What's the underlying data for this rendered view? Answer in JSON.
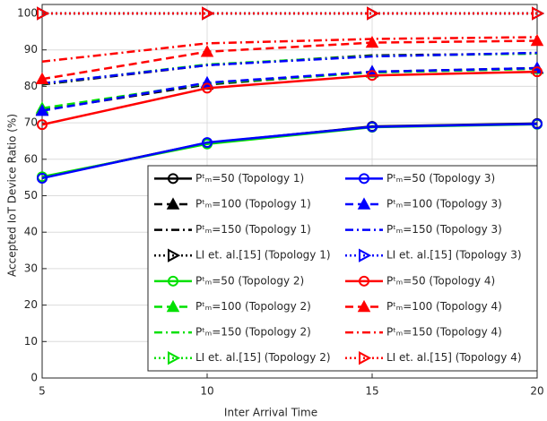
{
  "chart_data": {
    "type": "line",
    "xlabel": "Inter Arrival Time",
    "ylabel": "Accepted IoT Device Ratio (%)",
    "x": [
      5,
      10,
      15,
      20
    ],
    "xlim": [
      5,
      20
    ],
    "xticks": [
      5,
      10,
      15,
      20
    ],
    "ylim": [
      0,
      100
    ],
    "yticks": [
      0,
      10,
      20,
      30,
      40,
      50,
      60,
      70,
      80,
      90,
      100
    ],
    "grid": true,
    "series": [
      {
        "name": "Pᵗₘ=50 (Topology 1)",
        "color": "#000000",
        "marker": "circle",
        "linestyle": "solid",
        "values": [
          55,
          64.5,
          69,
          69.8
        ]
      },
      {
        "name": "Pᵗₘ=100 (Topology 1)",
        "color": "#000000",
        "marker": "triangle-up",
        "linestyle": "dashed",
        "values": [
          73.5,
          80.5,
          84,
          85
        ]
      },
      {
        "name": "Pᵗₘ=150 (Topology 1)",
        "color": "#000000",
        "marker": "none",
        "linestyle": "dashdot",
        "values": [
          80.5,
          85.8,
          88.5,
          89
        ]
      },
      {
        "name": "LI et. al.[15] (Topology 1)",
        "color": "#000000",
        "marker": "triangle-right",
        "linestyle": "dotted",
        "values": [
          100,
          100,
          100,
          100
        ]
      },
      {
        "name": "Pᵗₘ=50 (Topology 2)",
        "color": "#00e000",
        "marker": "circle",
        "linestyle": "solid",
        "values": [
          55.2,
          64.2,
          68.8,
          69.6
        ]
      },
      {
        "name": "Pᵗₘ=100 (Topology 2)",
        "color": "#00e000",
        "marker": "triangle-up",
        "linestyle": "dashed",
        "values": [
          74,
          80.8,
          83.8,
          84.8
        ]
      },
      {
        "name": "Pᵗₘ=150 (Topology 2)",
        "color": "#00e000",
        "marker": "none",
        "linestyle": "dashdot",
        "values": [
          80.7,
          86,
          88.3,
          89
        ]
      },
      {
        "name": "LI et. al.[15] (Topology 2)",
        "color": "#00e000",
        "marker": "triangle-right",
        "linestyle": "dotted",
        "values": [
          100,
          100,
          100,
          100
        ]
      },
      {
        "name": "Pᵗₘ=50 (Topology 3)",
        "color": "#0000ff",
        "marker": "circle",
        "linestyle": "solid",
        "values": [
          54.8,
          64.6,
          68.9,
          69.7
        ]
      },
      {
        "name": "Pᵗₘ=100 (Topology 3)",
        "color": "#0000ff",
        "marker": "triangle-up",
        "linestyle": "dashed",
        "values": [
          73.3,
          81,
          84,
          85
        ]
      },
      {
        "name": "Pᵗₘ=150 (Topology 3)",
        "color": "#0000ff",
        "marker": "none",
        "linestyle": "dashdot",
        "values": [
          80.8,
          85.8,
          88.2,
          89.2
        ]
      },
      {
        "name": "LI et. al.[15] (Topology 3)",
        "color": "#0000ff",
        "marker": "triangle-right",
        "linestyle": "dotted",
        "values": [
          100,
          100,
          100,
          100
        ]
      },
      {
        "name": "Pᵗₘ=50 (Topology 4)",
        "color": "#ff0000",
        "marker": "circle",
        "linestyle": "solid",
        "values": [
          69.5,
          79.5,
          83,
          84
        ]
      },
      {
        "name": "Pᵗₘ=100 (Topology 4)",
        "color": "#ff0000",
        "marker": "triangle-up",
        "linestyle": "dashed",
        "values": [
          82,
          89.5,
          92,
          92.5
        ]
      },
      {
        "name": "Pᵗₘ=150 (Topology 4)",
        "color": "#ff0000",
        "marker": "none",
        "linestyle": "dashdot",
        "values": [
          86.8,
          91.8,
          93,
          93.5
        ]
      },
      {
        "name": "LI et. al.[15] (Topology 4)",
        "color": "#ff0000",
        "marker": "triangle-right",
        "linestyle": "dotted",
        "values": [
          100,
          100,
          100,
          100
        ]
      }
    ]
  }
}
